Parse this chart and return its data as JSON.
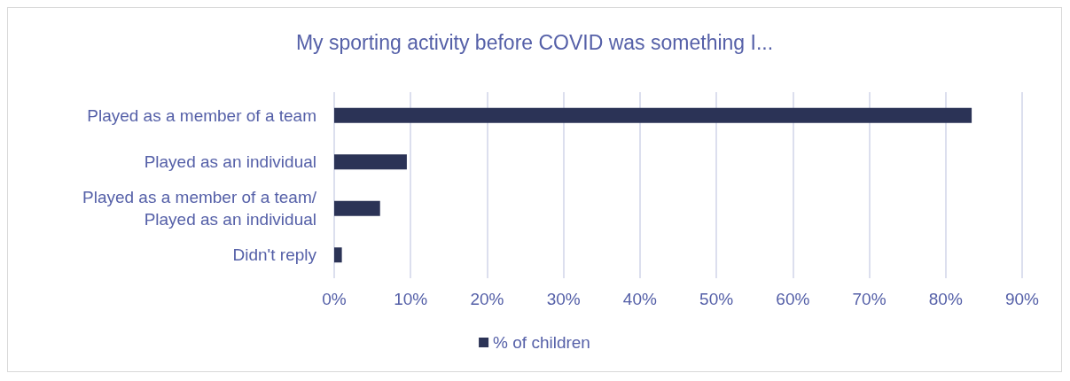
{
  "chart_data": {
    "type": "bar",
    "orientation": "horizontal",
    "title": "My sporting activity before COVID was something I...",
    "categories": [
      "Played as a member of a team",
      "Played as an individual",
      "Played as a member of a team/\nPlayed as an individual",
      "Didn't reply"
    ],
    "series": [
      {
        "name": "% of children",
        "color": "#2b3356",
        "values": [
          83.4,
          9.5,
          6.0,
          1.0
        ]
      }
    ],
    "xlim": [
      0,
      90
    ],
    "xticks": [
      {
        "value": 0,
        "label": "0%"
      },
      {
        "value": 10,
        "label": "10%"
      },
      {
        "value": 20,
        "label": "20%"
      },
      {
        "value": 30,
        "label": "30%"
      },
      {
        "value": 40,
        "label": "40%"
      },
      {
        "value": 50,
        "label": "50%"
      },
      {
        "value": 60,
        "label": "60%"
      },
      {
        "value": 70,
        "label": "70%"
      },
      {
        "value": 80,
        "label": "80%"
      },
      {
        "value": 90,
        "label": "90%"
      }
    ],
    "grid": "x",
    "legend": "bottom"
  }
}
